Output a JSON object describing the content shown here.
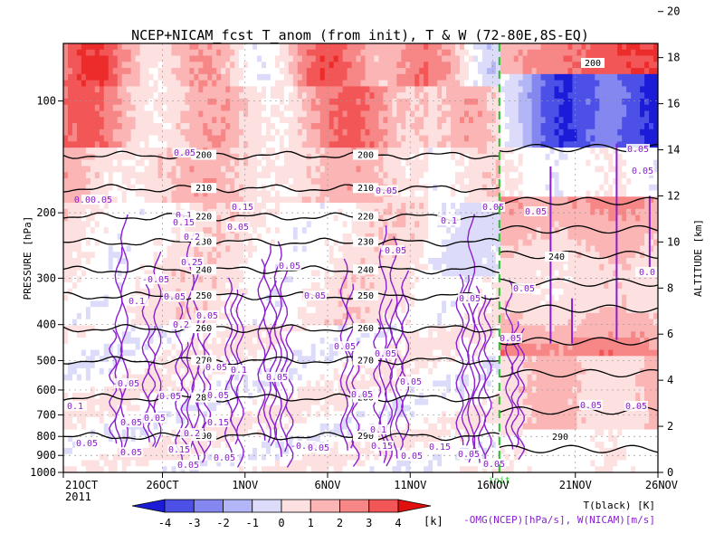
{
  "chart_data": {
    "type": "heatmap",
    "title": "NCEP+NICAM_fcst T_anom (from init), T & W  (72-80E,8S-EQ)",
    "ylabel_left": "PRESSURE [hPa]",
    "ylabel_right": "ALTITUDE [km]",
    "xlabel_year": "2011",
    "x_ticks": [
      "21OCT",
      "26OCT",
      "1NOV",
      "6NOV",
      "11NOV",
      "16NOV",
      "21NOV",
      "26NOV"
    ],
    "x_day_range": [
      0,
      36
    ],
    "init_label": "init",
    "init_day": 26.4,
    "pressure_ticks": [
      100,
      200,
      300,
      400,
      500,
      600,
      700,
      800,
      900,
      1000
    ],
    "pressure_range": [
      1000,
      70
    ],
    "altitude_ticks": [
      0,
      2,
      4,
      6,
      8,
      10,
      12,
      14,
      16,
      18,
      20
    ],
    "colorbar": {
      "levels": [
        -4,
        -3,
        -2,
        -1,
        0,
        1,
        2,
        3,
        4
      ],
      "unit": "[k]",
      "colors": [
        "#1c1cd8",
        "#4c50e6",
        "#8487ef",
        "#b3b6f6",
        "#dcdcfa",
        "#ffffff",
        "#fde0e0",
        "#fbb5b5",
        "#f78787",
        "#f25656",
        "#ec2b2b",
        "#e20f0f"
      ]
    },
    "legend_line1": "T(black) [K]",
    "legend_line2": "-OMG(NCEP)[hPa/s], W(NICAM)[m/s]",
    "temperature_contours": [
      {
        "label": "200",
        "pressure": 140
      },
      {
        "label": "210",
        "pressure": 172
      },
      {
        "label": "220",
        "pressure": 205
      },
      {
        "label": "230",
        "pressure": 240
      },
      {
        "label": "240",
        "pressure": 285
      },
      {
        "label": "250",
        "pressure": 335
      },
      {
        "label": "260",
        "pressure": 410
      },
      {
        "label": "270",
        "pressure": 500
      },
      {
        "label": "280",
        "pressure": 630
      },
      {
        "label": "290",
        "pressure": 800
      }
    ],
    "nicam_contour_labels": [
      "200",
      "240",
      "290"
    ],
    "w_labels": [
      "0.05",
      "0.00.05",
      "0.1",
      "0.15",
      "0.2",
      "0.25",
      "-0.05",
      "0.05",
      "0.1",
      "0.2",
      "0.05",
      "0.05",
      "0.15",
      "0.05",
      "0.1",
      "0.05",
      "0.15",
      "0.2",
      "0.15",
      "0.05",
      "0.05",
      "0.05",
      "-0.05",
      "0.05",
      "0.05",
      "0.05",
      "-0.05",
      "0.05",
      "0.1",
      "0.15",
      "0.05",
      "0.15",
      "0.1",
      "0.05",
      "0.05",
      "0.05",
      "0.05",
      "0.05",
      "0.05",
      "0.05",
      "0.05",
      "0.05",
      "0.05",
      "0.1",
      "0.05",
      "-0.05",
      "0.05",
      "0.05",
      "0.05",
      "0.05",
      "0.05",
      "0.05",
      "0.05",
      "0.05",
      "0.05",
      "0.0"
    ]
  }
}
